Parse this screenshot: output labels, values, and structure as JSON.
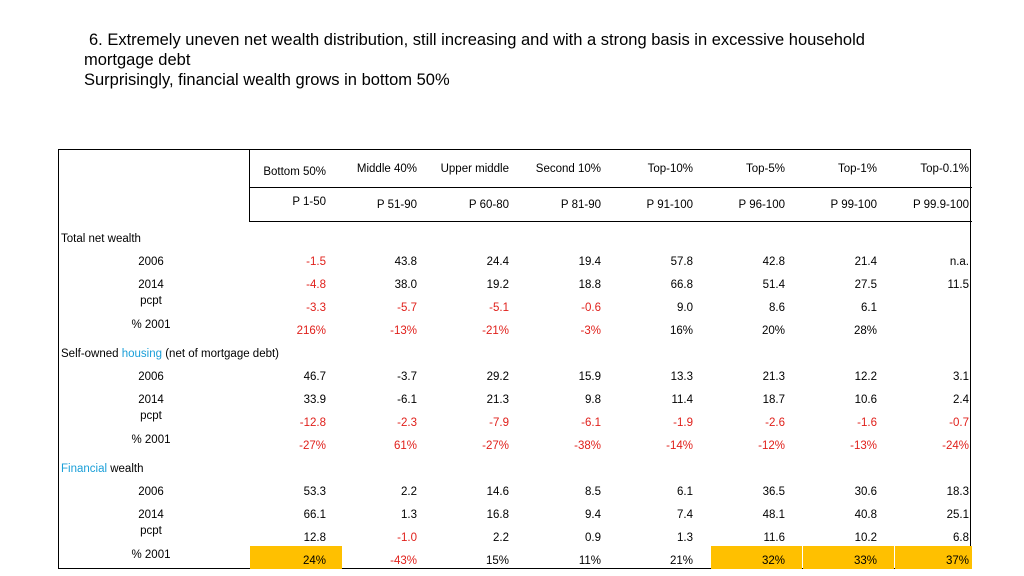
{
  "title": {
    "line1": "6. Extremely uneven net wealth distribution, still increasing and with a strong basis in excessive household",
    "line2": "mortgage debt",
    "line3": "Surprisingly, financial wealth grows in bottom 50%"
  },
  "header": {
    "groups": [
      "Bottom 50%",
      "Middle 40%",
      "Upper middle",
      "Second 10%",
      "Top-10%",
      "Top-5%",
      "Top-1%",
      "Top-0.1%"
    ],
    "percentiles": [
      "P 1-50",
      "P 51-90",
      "P 60-80",
      "P 81-90",
      "P 91-100",
      "P 96-100",
      "P 99-100",
      "P 99.9-100"
    ]
  },
  "sections": [
    {
      "label": "Total net wealth",
      "label_parts": [],
      "rows": [
        {
          "label": "2006",
          "values": [
            "-1.5",
            "43.8",
            "24.4",
            "19.4",
            "57.8",
            "42.8",
            "21.4",
            "n.a."
          ],
          "red": [
            true,
            false,
            false,
            false,
            false,
            false,
            false,
            false
          ],
          "highlight": [
            false,
            false,
            false,
            false,
            false,
            false,
            false,
            false
          ]
        },
        {
          "label": "2014",
          "values": [
            "-4.8",
            "38.0",
            "19.2",
            "18.8",
            "66.8",
            "51.4",
            "27.5",
            "11.5"
          ],
          "red": [
            true,
            false,
            false,
            false,
            false,
            false,
            false,
            false
          ],
          "highlight": [
            false,
            false,
            false,
            false,
            false,
            false,
            false,
            false
          ]
        },
        {
          "label": "pcpt",
          "values": [
            "-3.3",
            "-5.7",
            "-5.1",
            "-0.6",
            "9.0",
            "8.6",
            "6.1",
            ""
          ],
          "red": [
            true,
            true,
            true,
            true,
            false,
            false,
            false,
            false
          ],
          "highlight": [
            false,
            false,
            false,
            false,
            false,
            false,
            false,
            false
          ]
        },
        {
          "label": "% 2001",
          "values": [
            "216%",
            "-13%",
            "-21%",
            "-3%",
            "16%",
            "20%",
            "28%",
            ""
          ],
          "red": [
            true,
            true,
            true,
            true,
            false,
            false,
            false,
            false
          ],
          "highlight": [
            false,
            false,
            false,
            false,
            false,
            false,
            false,
            false
          ]
        }
      ]
    },
    {
      "label": "",
      "label_parts": [
        {
          "text": "Self-owned ",
          "color": "#000000"
        },
        {
          "text": "housing",
          "color": "#1a9fd8"
        },
        {
          "text": " (net of mortgage debt)",
          "color": "#000000"
        }
      ],
      "rows": [
        {
          "label": "2006",
          "values": [
            "46.7",
            "-3.7",
            "29.2",
            "15.9",
            "13.3",
            "21.3",
            "12.2",
            "3.1"
          ],
          "red": [
            false,
            false,
            false,
            false,
            false,
            false,
            false,
            false
          ],
          "highlight": [
            false,
            false,
            false,
            false,
            false,
            false,
            false,
            false
          ]
        },
        {
          "label": "2014",
          "values": [
            "33.9",
            "-6.1",
            "21.3",
            "9.8",
            "11.4",
            "18.7",
            "10.6",
            "2.4"
          ],
          "red": [
            false,
            false,
            false,
            false,
            false,
            false,
            false,
            false
          ],
          "highlight": [
            false,
            false,
            false,
            false,
            false,
            false,
            false,
            false
          ]
        },
        {
          "label": "pcpt",
          "values": [
            "-12.8",
            "-2.3",
            "-7.9",
            "-6.1",
            "-1.9",
            "-2.6",
            "-1.6",
            "-0.7"
          ],
          "red": [
            true,
            true,
            true,
            true,
            true,
            true,
            true,
            true
          ],
          "highlight": [
            false,
            false,
            false,
            false,
            false,
            false,
            false,
            false
          ]
        },
        {
          "label": "% 2001",
          "values": [
            "-27%",
            "61%",
            "-27%",
            "-38%",
            "-14%",
            "-12%",
            "-13%",
            "-24%"
          ],
          "red": [
            true,
            true,
            true,
            true,
            true,
            true,
            true,
            true
          ],
          "highlight": [
            false,
            false,
            false,
            false,
            false,
            false,
            false,
            false
          ]
        }
      ]
    },
    {
      "label": "",
      "label_parts": [
        {
          "text": "Financial",
          "color": "#1a9fd8"
        },
        {
          "text": " wealth",
          "color": "#000000"
        }
      ],
      "rows": [
        {
          "label": "2006",
          "values": [
            "53.3",
            "2.2",
            "14.6",
            "8.5",
            "6.1",
            "36.5",
            "30.6",
            "18.3"
          ],
          "red": [
            false,
            false,
            false,
            false,
            false,
            false,
            false,
            false
          ],
          "highlight": [
            false,
            false,
            false,
            false,
            false,
            false,
            false,
            false
          ]
        },
        {
          "label": "2014",
          "values": [
            "66.1",
            "1.3",
            "16.8",
            "9.4",
            "7.4",
            "48.1",
            "40.8",
            "25.1"
          ],
          "red": [
            false,
            false,
            false,
            false,
            false,
            false,
            false,
            false
          ],
          "highlight": [
            false,
            false,
            false,
            false,
            false,
            false,
            false,
            false
          ]
        },
        {
          "label": "pcpt",
          "values": [
            "12.8",
            "-1.0",
            "2.2",
            "0.9",
            "1.3",
            "11.6",
            "10.2",
            "6.8"
          ],
          "red": [
            false,
            true,
            false,
            false,
            false,
            false,
            false,
            false
          ],
          "highlight": [
            false,
            false,
            false,
            false,
            false,
            false,
            false,
            false
          ]
        },
        {
          "label": "% 2001",
          "values": [
            "24%",
            "-43%",
            "15%",
            "11%",
            "21%",
            "32%",
            "33%",
            "37%"
          ],
          "red": [
            false,
            true,
            false,
            false,
            false,
            false,
            false,
            false
          ],
          "highlight": [
            true,
            false,
            false,
            false,
            false,
            true,
            true,
            true
          ]
        }
      ]
    }
  ],
  "colors": {
    "negative": "#e0201b",
    "accent": "#1a9fd8",
    "highlight": "#ffc000"
  }
}
